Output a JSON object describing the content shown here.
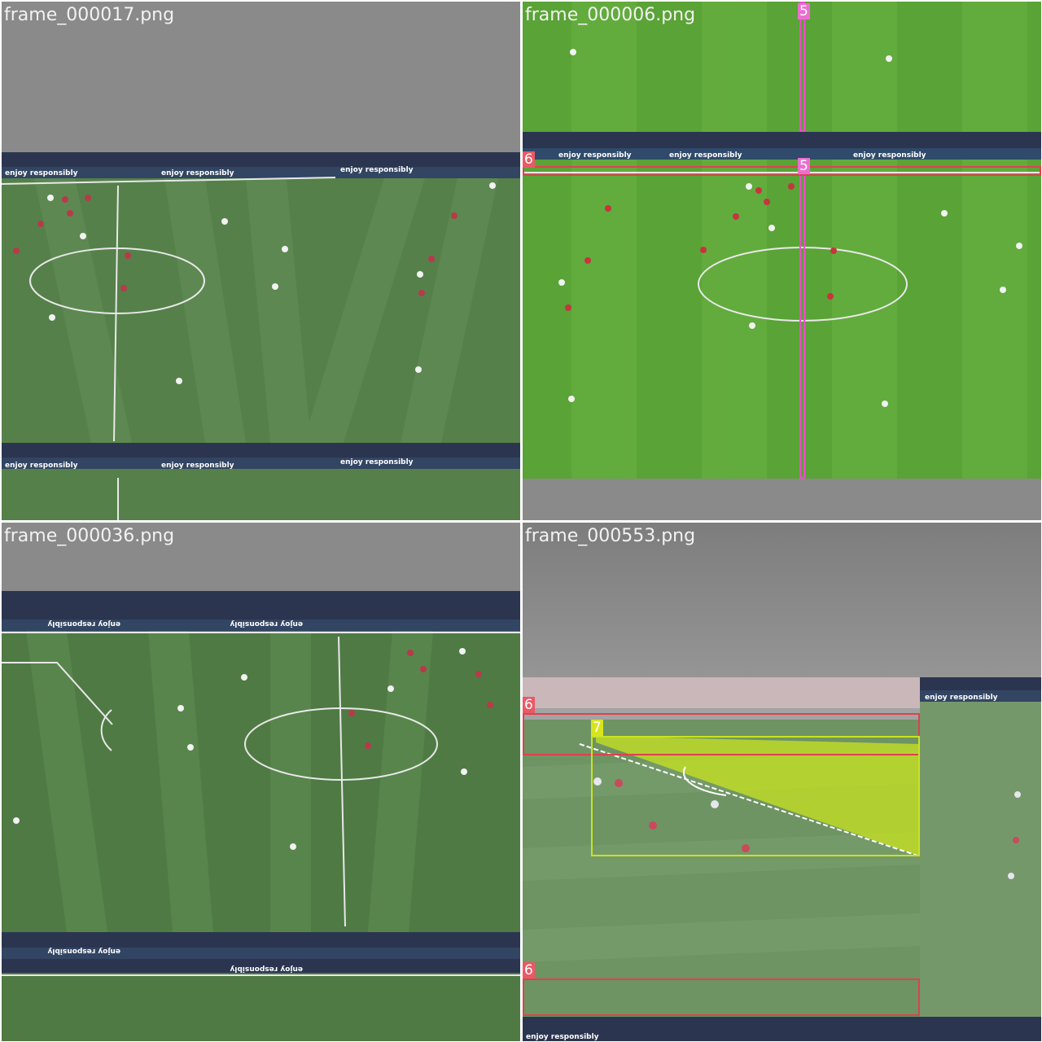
{
  "panels": [
    {
      "filename": "frame_000017.png"
    },
    {
      "filename": "frame_000006.png",
      "boxes": [
        {
          "class_id": "5"
        },
        {
          "class_id": "5"
        },
        {
          "class_id": "6"
        }
      ]
    },
    {
      "filename": "frame_000036.png"
    },
    {
      "filename": "frame_000553.png",
      "boxes": [
        {
          "class_id": "6"
        },
        {
          "class_id": "7"
        },
        {
          "class_id": "6"
        }
      ]
    }
  ],
  "ad_boards": {
    "text": "enjoy responsibly",
    "mirrored_text": "enjoy responsibly"
  },
  "colors": {
    "canvas_gray": "#8a8a8a",
    "pitch_dark": "#4b7a3f",
    "pitch_light": "#5e8f4c",
    "pitch_bright": "#5aa336",
    "class_5": "#ea4fc8",
    "class_6": "#e0404f",
    "class_7": "#c9e320"
  }
}
